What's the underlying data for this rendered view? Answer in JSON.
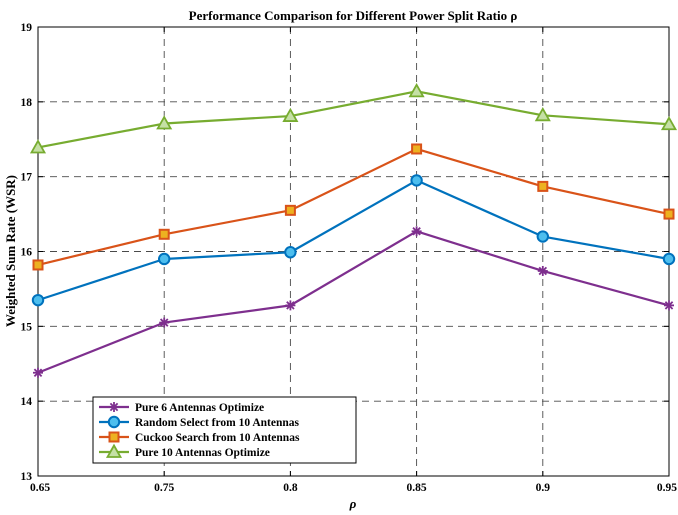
{
  "chart_data": {
    "type": "line",
    "title": "Performance Comparison for Different Power Split Ratio ρ",
    "xlabel": "ρ",
    "ylabel": "Weighted Sum Rate (WSR)",
    "categories": [
      "0.65",
      "0.75",
      "0.8",
      "0.85",
      "0.9",
      "0.95"
    ],
    "ylim": [
      13,
      19
    ],
    "yticks": [
      "13",
      "14",
      "15",
      "16",
      "17",
      "18",
      "19"
    ],
    "grid": true,
    "legend_position": "bottom-left",
    "series": [
      {
        "name": "Pure 6 Antennas Optimize",
        "values": [
          14.38,
          15.05,
          15.28,
          16.27,
          15.74,
          15.28
        ],
        "color": "#7E2F8E",
        "marker": "asterisk"
      },
      {
        "name": "Random Select from 10 Antennas",
        "values": [
          15.35,
          15.9,
          15.99,
          16.95,
          16.2,
          15.9
        ],
        "color": "#0072BD",
        "marker": "circle"
      },
      {
        "name": "Cuckoo Search from 10 Antennas",
        "values": [
          15.82,
          16.23,
          16.55,
          17.37,
          16.87,
          16.5
        ],
        "color": "#D95319",
        "marker": "square"
      },
      {
        "name": "Pure 10 Antennas Optimize",
        "values": [
          17.39,
          17.71,
          17.81,
          18.14,
          17.82,
          17.7
        ],
        "color": "#77AC30",
        "marker": "triangle"
      }
    ]
  }
}
